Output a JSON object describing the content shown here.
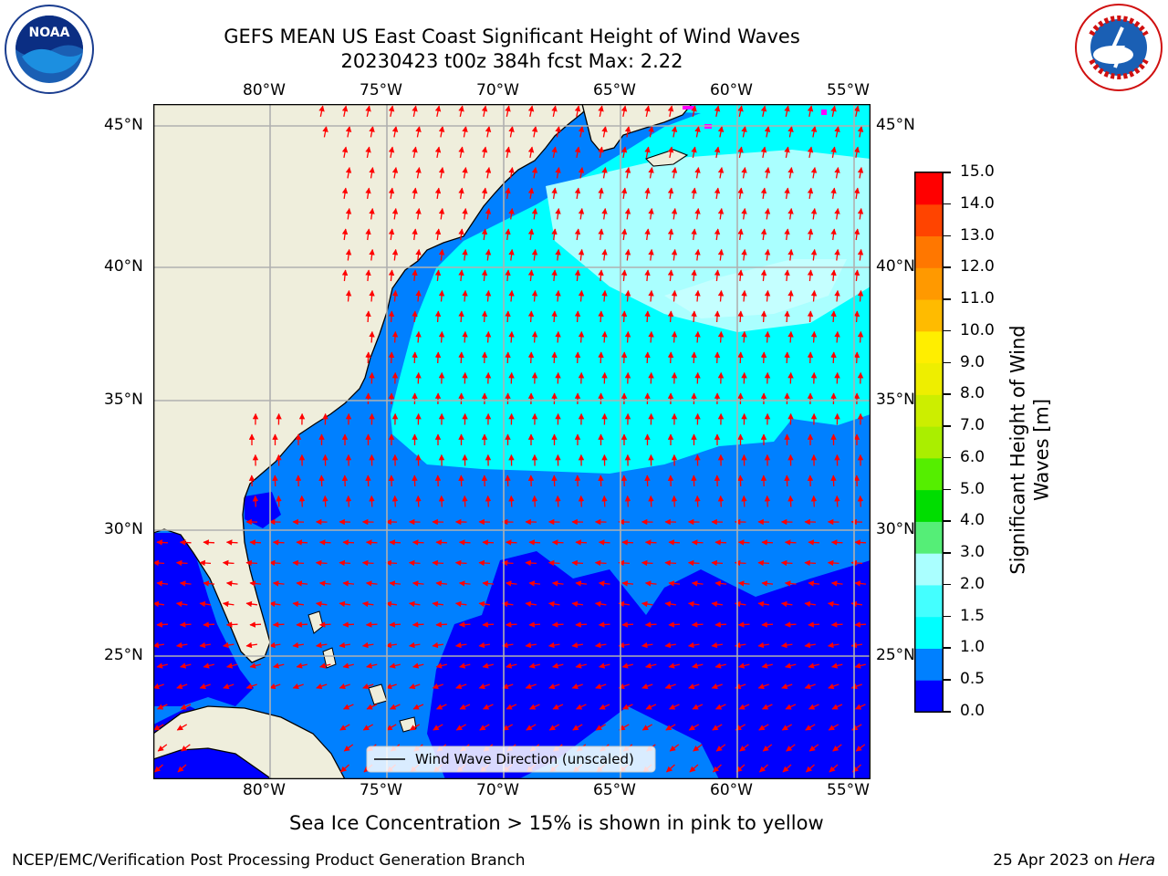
{
  "title": {
    "line1": "GEFS MEAN US East Coast Significant Height of Wind Waves",
    "line2": "20230423 t00z 384h fcst   Max: 2.22"
  },
  "lon_labels": [
    "80°W",
    "75°W",
    "70°W",
    "65°W",
    "60°W",
    "55°W"
  ],
  "lat_labels": [
    "45°N",
    "40°N",
    "35°N",
    "30°N",
    "25°N"
  ],
  "legend_label": "Wind Wave Direction (unscaled)",
  "colorbar": {
    "label_line1": "Significant Height of Wind",
    "label_line2": "Waves [m]",
    "ticks": [
      "0.0",
      "0.5",
      "1.0",
      "1.5",
      "2.0",
      "3.0",
      "4.0",
      "5.0",
      "6.0",
      "7.0",
      "8.0",
      "9.0",
      "10.0",
      "11.0",
      "12.0",
      "13.0",
      "14.0",
      "15.0"
    ],
    "colors": [
      "#0000ff",
      "#0080ff",
      "#00ffff",
      "#44ffff",
      "#aaffff",
      "#55ee77",
      "#00dd00",
      "#55ee00",
      "#aaee00",
      "#ccee00",
      "#eeee00",
      "#ffee00",
      "#ffbb00",
      "#ff9900",
      "#ff7700",
      "#ff4400",
      "#ff0000"
    ]
  },
  "colors": {
    "land": "#efeedc",
    "level_0": "#0000ff",
    "level_1": "#0080ff",
    "level_2": "#00ffff",
    "level_3": "#aaffff",
    "arrows": "#ff0000",
    "gridlines": "#b0b0b0",
    "sea_ice": "#ff00ff"
  },
  "sea_ice_note": "Sea Ice Concentration > 15% is shown in pink to yellow",
  "footer": {
    "left": "NCEP/EMC/Verification Post Processing Product Generation Branch",
    "right_date": "25 Apr 2023 on",
    "right_machine": "Hera"
  },
  "logos": {
    "left": "NOAA",
    "right": "NATIONAL WEATHER SERVICE"
  }
}
